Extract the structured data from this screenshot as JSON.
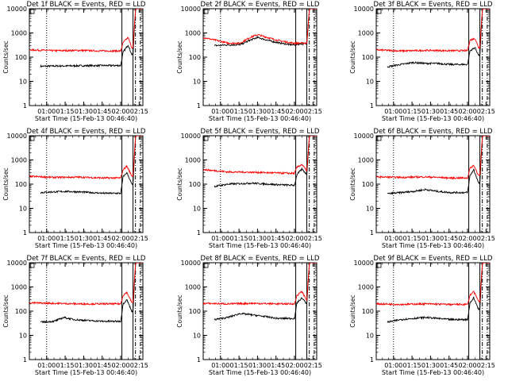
{
  "figure": {
    "ylabel": "Counts/sec",
    "xlabel": "Start Time (15-Feb-13 00:46:40)",
    "xticks": [
      "01:00",
      "01:15",
      "01:30",
      "01:45",
      "02:00",
      "02:15"
    ],
    "yticks": [
      "1",
      "10",
      "100",
      "1000",
      "10000"
    ],
    "black_color": "#000000",
    "red_color": "#ff0000"
  },
  "chart_data": [
    {
      "type": "line",
      "title": "Det 1f BLACK = Events, RED = LLD",
      "xlim_min": [
        0,
        92
      ],
      "ylim": [
        1,
        10000
      ],
      "yscale": "log",
      "vlines_min": {
        "dotted": 14,
        "solid": [
          75,
          84
        ],
        "dashdot": [
          86,
          90
        ]
      },
      "series": [
        {
          "color": "black",
          "x_min": [
            9,
            20,
            40,
            60,
            74,
            76,
            80,
            83,
            84,
            86,
            88,
            92
          ],
          "values": [
            42,
            43,
            44,
            45,
            45,
            160,
            320,
            130,
            130,
            9000,
            11000,
            11000
          ]
        },
        {
          "color": "red",
          "x_min": [
            0,
            20,
            40,
            60,
            74,
            76,
            80,
            83,
            84,
            86,
            88,
            92
          ],
          "values": [
            200,
            185,
            190,
            180,
            180,
            400,
            650,
            250,
            250,
            9000,
            11000,
            11000
          ]
        }
      ]
    },
    {
      "type": "line",
      "title": "Det 2f BLACK = Events, RED = LLD",
      "xlim_min": [
        0,
        92
      ],
      "ylim": [
        1,
        10000
      ],
      "yscale": "log",
      "vlines_min": {
        "dotted": 14,
        "solid": [
          75,
          84
        ],
        "dashdot": [
          86,
          90
        ]
      },
      "series": [
        {
          "color": "black",
          "x_min": [
            9,
            20,
            30,
            38,
            44,
            52,
            60,
            70,
            74,
            76,
            80,
            84,
            86,
            88,
            92
          ],
          "values": [
            300,
            320,
            330,
            500,
            650,
            500,
            400,
            330,
            320,
            340,
            360,
            360,
            9000,
            11000,
            11000
          ]
        },
        {
          "color": "red",
          "x_min": [
            0,
            10,
            20,
            30,
            38,
            44,
            52,
            60,
            70,
            74,
            76,
            80,
            84,
            86,
            88,
            92
          ],
          "values": [
            650,
            500,
            380,
            380,
            650,
            850,
            650,
            500,
            400,
            380,
            380,
            380,
            380,
            9000,
            11000,
            11000
          ]
        }
      ]
    },
    {
      "type": "line",
      "title": "Det 3f BLACK = Events, RED = LLD",
      "xlim_min": [
        0,
        92
      ],
      "ylim": [
        1,
        10000
      ],
      "yscale": "log",
      "vlines_min": {
        "dotted": 14,
        "solid": [
          75,
          84
        ],
        "dashdot": [
          86,
          90
        ]
      },
      "series": [
        {
          "color": "black",
          "x_min": [
            9,
            20,
            30,
            40,
            50,
            60,
            74,
            76,
            80,
            83,
            84,
            86,
            88,
            92
          ],
          "values": [
            40,
            50,
            60,
            55,
            55,
            50,
            50,
            180,
            250,
            120,
            120,
            9000,
            11000,
            11000
          ]
        },
        {
          "color": "red",
          "x_min": [
            0,
            20,
            40,
            60,
            74,
            76,
            80,
            83,
            84,
            86,
            88,
            92
          ],
          "values": [
            200,
            180,
            190,
            185,
            185,
            500,
            600,
            250,
            250,
            9000,
            11000,
            11000
          ]
        }
      ]
    },
    {
      "type": "line",
      "title": "Det 4f BLACK = Events, RED = LLD",
      "xlim_min": [
        0,
        92
      ],
      "ylim": [
        1,
        10000
      ],
      "yscale": "log",
      "vlines_min": {
        "dotted": 14,
        "solid": [
          75,
          84
        ],
        "dashdot": [
          86,
          90
        ]
      },
      "series": [
        {
          "color": "black",
          "x_min": [
            9,
            20,
            30,
            40,
            50,
            60,
            74,
            76,
            79,
            83,
            84,
            86,
            88,
            92
          ],
          "values": [
            45,
            48,
            50,
            48,
            45,
            42,
            42,
            200,
            300,
            100,
            100,
            9000,
            11000,
            11000
          ]
        },
        {
          "color": "red",
          "x_min": [
            0,
            20,
            40,
            60,
            74,
            76,
            79,
            83,
            84,
            86,
            88,
            92
          ],
          "values": [
            210,
            190,
            195,
            180,
            180,
            400,
            550,
            220,
            220,
            9000,
            11000,
            11000
          ]
        }
      ]
    },
    {
      "type": "line",
      "title": "Det 5f BLACK = Events, RED = LLD",
      "xlim_min": [
        0,
        92
      ],
      "ylim": [
        1,
        10000
      ],
      "yscale": "log",
      "vlines_min": {
        "dotted": 14,
        "solid": [
          75,
          84
        ],
        "dashdot": [
          86,
          90
        ]
      },
      "series": [
        {
          "color": "black",
          "x_min": [
            9,
            20,
            40,
            60,
            74,
            76,
            80,
            84,
            86,
            88,
            92
          ],
          "values": [
            80,
            100,
            110,
            95,
            90,
            250,
            420,
            250,
            9000,
            11000,
            11000
          ]
        },
        {
          "color": "red",
          "x_min": [
            0,
            20,
            40,
            60,
            74,
            76,
            80,
            84,
            86,
            88,
            92
          ],
          "values": [
            400,
            320,
            310,
            290,
            280,
            500,
            650,
            350,
            9000,
            11000,
            11000
          ]
        }
      ]
    },
    {
      "type": "line",
      "title": "Det 6f BLACK = Events, RED = LLD",
      "xlim_min": [
        0,
        92
      ],
      "ylim": [
        1,
        10000
      ],
      "yscale": "log",
      "vlines_min": {
        "dotted": 14,
        "solid": [
          75,
          84
        ],
        "dashdot": [
          86,
          90
        ]
      },
      "series": [
        {
          "color": "black",
          "x_min": [
            9,
            20,
            30,
            40,
            50,
            60,
            74,
            76,
            79,
            83,
            84,
            86,
            88,
            92
          ],
          "values": [
            40,
            45,
            50,
            60,
            50,
            45,
            45,
            220,
            400,
            110,
            110,
            9000,
            11000,
            11000
          ]
        },
        {
          "color": "red",
          "x_min": [
            0,
            20,
            40,
            60,
            74,
            76,
            79,
            83,
            84,
            86,
            88,
            92
          ],
          "values": [
            200,
            190,
            200,
            180,
            180,
            450,
            600,
            230,
            230,
            9000,
            11000,
            11000
          ]
        }
      ]
    },
    {
      "type": "line",
      "title": "Det 7f BLACK = Events, RED = LLD",
      "xlim_min": [
        0,
        92
      ],
      "ylim": [
        1,
        10000
      ],
      "yscale": "log",
      "vlines_min": {
        "dotted": 14,
        "solid": [
          75,
          84
        ],
        "dashdot": [
          86,
          90
        ]
      },
      "series": [
        {
          "color": "black",
          "x_min": [
            9,
            20,
            28,
            36,
            44,
            52,
            60,
            74,
            76,
            79,
            83,
            84,
            86,
            88,
            92
          ],
          "values": [
            35,
            38,
            55,
            45,
            42,
            40,
            38,
            38,
            200,
            300,
            100,
            100,
            9000,
            11000,
            11000
          ]
        },
        {
          "color": "red",
          "x_min": [
            0,
            20,
            40,
            60,
            74,
            76,
            79,
            83,
            84,
            86,
            88,
            92
          ],
          "values": [
            220,
            210,
            200,
            200,
            200,
            450,
            600,
            230,
            230,
            9000,
            11000,
            11000
          ]
        }
      ]
    },
    {
      "type": "line",
      "title": "Det 8f BLACK = Events, RED = LLD",
      "xlim_min": [
        0,
        92
      ],
      "ylim": [
        1,
        10000
      ],
      "yscale": "log",
      "vlines_min": {
        "dotted": 14,
        "solid": [
          75,
          84
        ],
        "dashdot": [
          86,
          90
        ]
      },
      "series": [
        {
          "color": "black",
          "x_min": [
            9,
            20,
            30,
            40,
            50,
            60,
            74,
            76,
            80,
            84,
            86,
            88,
            92
          ],
          "values": [
            45,
            55,
            80,
            70,
            60,
            50,
            50,
            220,
            350,
            200,
            9000,
            11000,
            11000
          ]
        },
        {
          "color": "red",
          "x_min": [
            0,
            20,
            40,
            60,
            74,
            76,
            80,
            84,
            86,
            88,
            92
          ],
          "values": [
            210,
            200,
            210,
            200,
            200,
            450,
            650,
            280,
            9000,
            11000,
            11000
          ]
        }
      ]
    },
    {
      "type": "line",
      "title": "Det 9f BLACK = Events, RED = LLD",
      "xlim_min": [
        0,
        92
      ],
      "ylim": [
        1,
        10000
      ],
      "yscale": "log",
      "vlines_min": {
        "dotted": 14,
        "solid": [
          75,
          84
        ],
        "dashdot": [
          86,
          90
        ]
      },
      "series": [
        {
          "color": "black",
          "x_min": [
            9,
            20,
            30,
            40,
            50,
            60,
            74,
            76,
            79,
            83,
            84,
            86,
            88,
            92
          ],
          "values": [
            35,
            45,
            50,
            55,
            50,
            45,
            45,
            220,
            350,
            120,
            120,
            9000,
            11000,
            11000
          ]
        },
        {
          "color": "red",
          "x_min": [
            0,
            20,
            40,
            60,
            74,
            76,
            79,
            83,
            84,
            86,
            88,
            92
          ],
          "values": [
            200,
            190,
            200,
            190,
            190,
            450,
            650,
            250,
            250,
            9000,
            11000,
            11000
          ]
        }
      ]
    }
  ]
}
